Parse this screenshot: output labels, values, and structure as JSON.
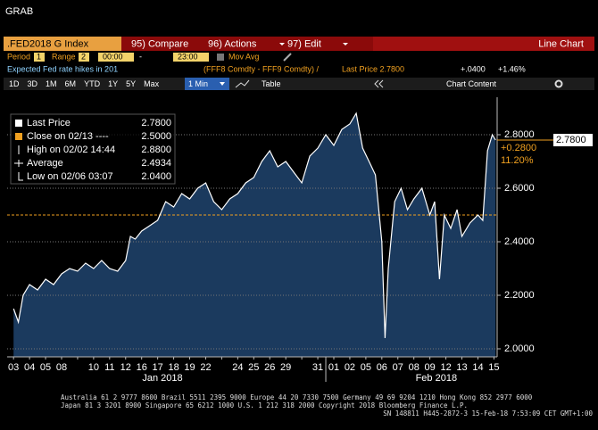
{
  "window_title": "GRAB",
  "toolbar": {
    "security": ".FED2018 G Index",
    "buttons": [
      "95) Compare",
      "96) Actions",
      "97) Edit"
    ],
    "view": "Line Chart"
  },
  "settings": {
    "period_label": "Period",
    "period": "1",
    "range_label": "Range",
    "range": "2",
    "start": "00:00",
    "separator": "-",
    "end": "23:00",
    "mov_avg": "Mov Avg"
  },
  "header_line": {
    "description": "Expected Fed rate hikes in 201",
    "formula": "(FFF8 Comdty - FFF9 Comdty) /",
    "last_price": "Last Price 2.7800",
    "change": "+.0400",
    "change_pct": "+1.46%"
  },
  "tabs": [
    "1D",
    "3D",
    "1M",
    "6M",
    "YTD",
    "1Y",
    "5Y",
    "Max"
  ],
  "interval": "1 Min",
  "table": "Table",
  "chart_content": "Chart Content",
  "chart_data": {
    "type": "line",
    "categories": [
      "03",
      "04",
      "05",
      "08",
      null,
      "10",
      "11",
      "12",
      "16",
      "17",
      "18",
      "19",
      "22",
      null,
      "24",
      "25",
      "26",
      "29",
      null,
      "31",
      "01",
      "02",
      "05",
      "06",
      "07",
      "08",
      "09",
      "12",
      "13",
      "14",
      "15"
    ],
    "month_labels": [
      "Jan 2018",
      "Feb 2018"
    ],
    "x": [
      0,
      0.3,
      0.6,
      1,
      1.5,
      2,
      2.5,
      3,
      3.5,
      4,
      4.5,
      5,
      5.5,
      6,
      6.5,
      7,
      7.3,
      7.6,
      8,
      8.5,
      9,
      9.5,
      10,
      10.5,
      11,
      11.5,
      12,
      12.5,
      13,
      13.5,
      14,
      14.5,
      15,
      15.5,
      16,
      16.5,
      17,
      17.5,
      18,
      18.5,
      19,
      19.5,
      20,
      20.5,
      21,
      21.4,
      21.8,
      22.2,
      22.6,
      23,
      23.2,
      23.4,
      23.8,
      24.2,
      24.6,
      25,
      25.5,
      26,
      26.3,
      26.6,
      26.9,
      27.3,
      27.7,
      28,
      28.5,
      29,
      29.3,
      29.6,
      29.9,
      30.1
    ],
    "xlim": [
      -0.4,
      30.2
    ],
    "series": [
      {
        "color": "#ffffff",
        "fill": "#1b3a5e",
        "values": [
          2.15,
          2.1,
          2.2,
          2.24,
          2.22,
          2.26,
          2.24,
          2.28,
          2.3,
          2.29,
          2.32,
          2.3,
          2.33,
          2.3,
          2.29,
          2.33,
          2.42,
          2.41,
          2.44,
          2.46,
          2.48,
          2.55,
          2.53,
          2.58,
          2.56,
          2.6,
          2.62,
          2.55,
          2.52,
          2.56,
          2.58,
          2.62,
          2.64,
          2.7,
          2.74,
          2.68,
          2.7,
          2.66,
          2.62,
          2.72,
          2.75,
          2.8,
          2.76,
          2.82,
          2.84,
          2.88,
          2.75,
          2.7,
          2.65,
          2.4,
          2.04,
          2.3,
          2.55,
          2.6,
          2.52,
          2.56,
          2.6,
          2.5,
          2.55,
          2.26,
          2.5,
          2.45,
          2.52,
          2.42,
          2.47,
          2.5,
          2.48,
          2.74,
          2.8,
          2.78
        ]
      }
    ],
    "reference_line": {
      "value": 2.5,
      "color": "#f0a020"
    },
    "ylim": [
      1.97,
      2.94
    ],
    "yticks": [
      {
        "value": 2.0,
        "label": "2.0000"
      },
      {
        "value": 2.2,
        "label": "2.2000"
      },
      {
        "value": 2.4,
        "label": "2.4000"
      },
      {
        "value": 2.6,
        "label": "2.6000"
      },
      {
        "value": 2.8,
        "label": "2.8000"
      }
    ],
    "grid": true,
    "last_price_tag": "2.7800",
    "annotations": [
      "+0.2800",
      "11.20%"
    ],
    "legend": [
      {
        "label": "Last Price",
        "value": "2.7800"
      },
      {
        "label": "Close on 02/13 ----",
        "value": "2.5000"
      },
      {
        "label": "High on 02/02 14:44",
        "value": "2.8800"
      },
      {
        "label": "Average",
        "value": "2.4934"
      },
      {
        "label": "Low on 02/06 03:07",
        "value": "2.0400"
      }
    ]
  },
  "footer": [
    "Australia 61 2 9777 8600 Brazil 5511 2395 9000 Europe 44 20 7330 7500 Germany 49 69 9204 1210 Hong Kong 852 2977 6000",
    "Japan 81 3 3201 8900     Singapore 65 6212 1000     U.S. 1 212 318 2000     Copyright 2018 Bloomberg Finance L.P.",
    "SN 148811 H445-2872-3 15-Feb-18  7:53:09 CET  GMT+1:00"
  ]
}
